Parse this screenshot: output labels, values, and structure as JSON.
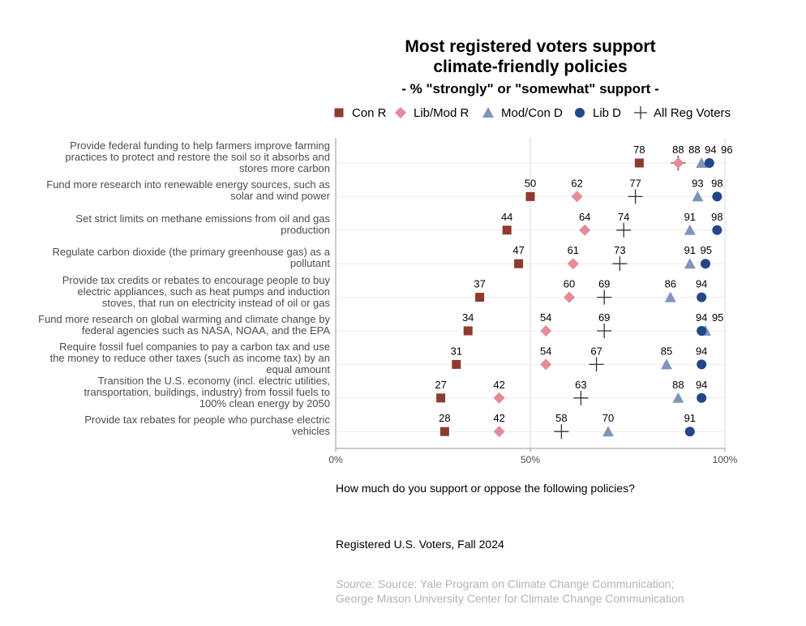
{
  "chart_data": {
    "type": "dot",
    "title_line1": "Most registered voters support",
    "title_line2": "climate-friendly policies",
    "subtitle": "- % \"strongly\" or \"somewhat\" support -",
    "xlim": [
      0,
      100
    ],
    "x_ticks": [
      "0%",
      "50%",
      "100%"
    ],
    "x_tick_values": [
      0,
      50,
      100
    ],
    "series": [
      {
        "name": "Con R",
        "marker": "square",
        "color": "#8e3b2e"
      },
      {
        "name": "Lib/Mod R",
        "marker": "diamond",
        "color": "#e58a98"
      },
      {
        "name": "Mod/Con D",
        "marker": "triangle",
        "color": "#7f96ba"
      },
      {
        "name": "Lib D",
        "marker": "circle",
        "color": "#23468a"
      },
      {
        "name": "All Reg Voters",
        "marker": "plus",
        "color": "#333333"
      }
    ],
    "rows": [
      {
        "label": [
          "Provide federal funding to help farmers improve farming",
          "practices to protect and restore the soil so it absorbs and",
          "stores more carbon"
        ],
        "values": [
          78,
          88,
          94,
          96,
          88
        ]
      },
      {
        "label": [
          "Fund more research into renewable energy sources, such as",
          "solar and wind power"
        ],
        "values": [
          50,
          62,
          93,
          98,
          77
        ]
      },
      {
        "label": [
          "Set strict limits on methane emissions from oil and gas",
          "production"
        ],
        "values": [
          44,
          64,
          91,
          98,
          74
        ]
      },
      {
        "label": [
          "Regulate carbon dioxide (the primary greenhouse gas) as a",
          "pollutant"
        ],
        "values": [
          47,
          61,
          91,
          95,
          73
        ]
      },
      {
        "label": [
          "Provide tax credits or rebates to encourage people to buy",
          "electric appliances, such as heat pumps and induction",
          "stoves, that run on electricity instead of oil or gas"
        ],
        "values": [
          37,
          60,
          86,
          94,
          69
        ]
      },
      {
        "label": [
          "Fund more research on global warming and climate change by",
          "federal agencies such as NASA, NOAA, and the EPA"
        ],
        "values": [
          34,
          54,
          95,
          94,
          69
        ]
      },
      {
        "label": [
          "Require fossil fuel companies to pay a carbon tax and use",
          "the money to reduce other taxes (such as income tax) by an",
          "equal amount"
        ],
        "values": [
          31,
          54,
          85,
          94,
          67
        ]
      },
      {
        "label": [
          "Transition the U.S. economy (incl. electric utilities,",
          "transportation, buildings, industry) from fossil fuels to",
          "100% clean energy by 2050"
        ],
        "values": [
          27,
          42,
          88,
          94,
          63
        ]
      },
      {
        "label": [
          "Provide tax rebates for people who purchase electric",
          "vehicles"
        ],
        "values": [
          28,
          42,
          70,
          91,
          58
        ]
      }
    ]
  },
  "question": "How much do you support or oppose the following policies?",
  "sample": "Registered U.S. Voters, Fall 2024",
  "source_prefix": "Source:",
  "source_text": "Source: Yale Program on Climate Change Communication; George Mason University Center for Climate Change Communication"
}
